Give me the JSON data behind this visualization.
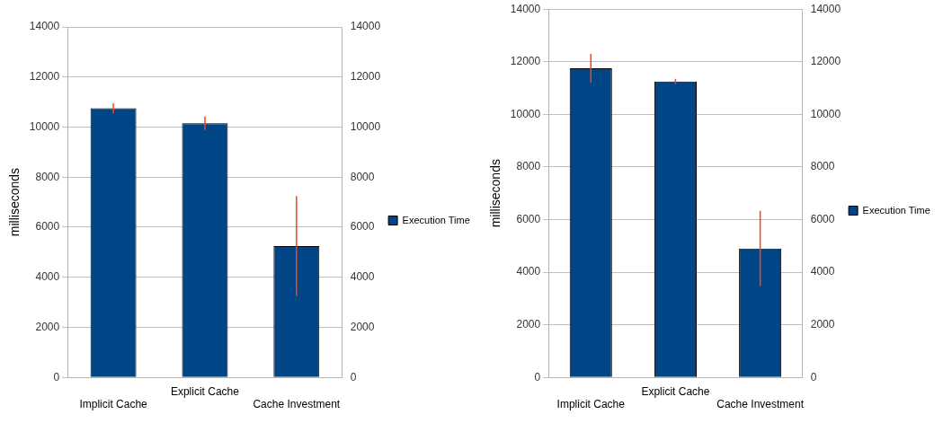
{
  "chart_data": [
    {
      "type": "bar",
      "ylabel": "milliseconds",
      "categories": [
        "Implicit Cache",
        "Explicit Cache",
        "Cache Investment"
      ],
      "series": [
        {
          "name": "Execution Time",
          "color": "#004586",
          "values": [
            10750,
            10150,
            5250
          ],
          "errors": [
            200,
            270,
            2000
          ]
        }
      ],
      "ylim": [
        0,
        14000
      ],
      "yticks": [
        0,
        2000,
        4000,
        6000,
        8000,
        10000,
        12000,
        14000
      ],
      "y2lim": [
        0,
        14000
      ],
      "y2ticks": [
        0,
        2000,
        4000,
        6000,
        8000,
        10000,
        12000,
        14000
      ],
      "grid": "y",
      "legend": "right"
    },
    {
      "type": "bar",
      "ylabel": "milliseconds",
      "categories": [
        "Implicit Cache",
        "Explicit Cache",
        "Cache Investment"
      ],
      "series": [
        {
          "name": "Execution Time",
          "color": "#004586",
          "values": [
            11750,
            11250,
            4900
          ],
          "errors": [
            550,
            100,
            1430
          ]
        }
      ],
      "ylim": [
        0,
        14000
      ],
      "yticks": [
        0,
        2000,
        4000,
        6000,
        8000,
        10000,
        12000,
        14000
      ],
      "y2lim": [
        0,
        14000
      ],
      "y2ticks": [
        0,
        2000,
        4000,
        6000,
        8000,
        10000,
        12000,
        14000
      ],
      "grid": "y",
      "legend": "right"
    }
  ]
}
